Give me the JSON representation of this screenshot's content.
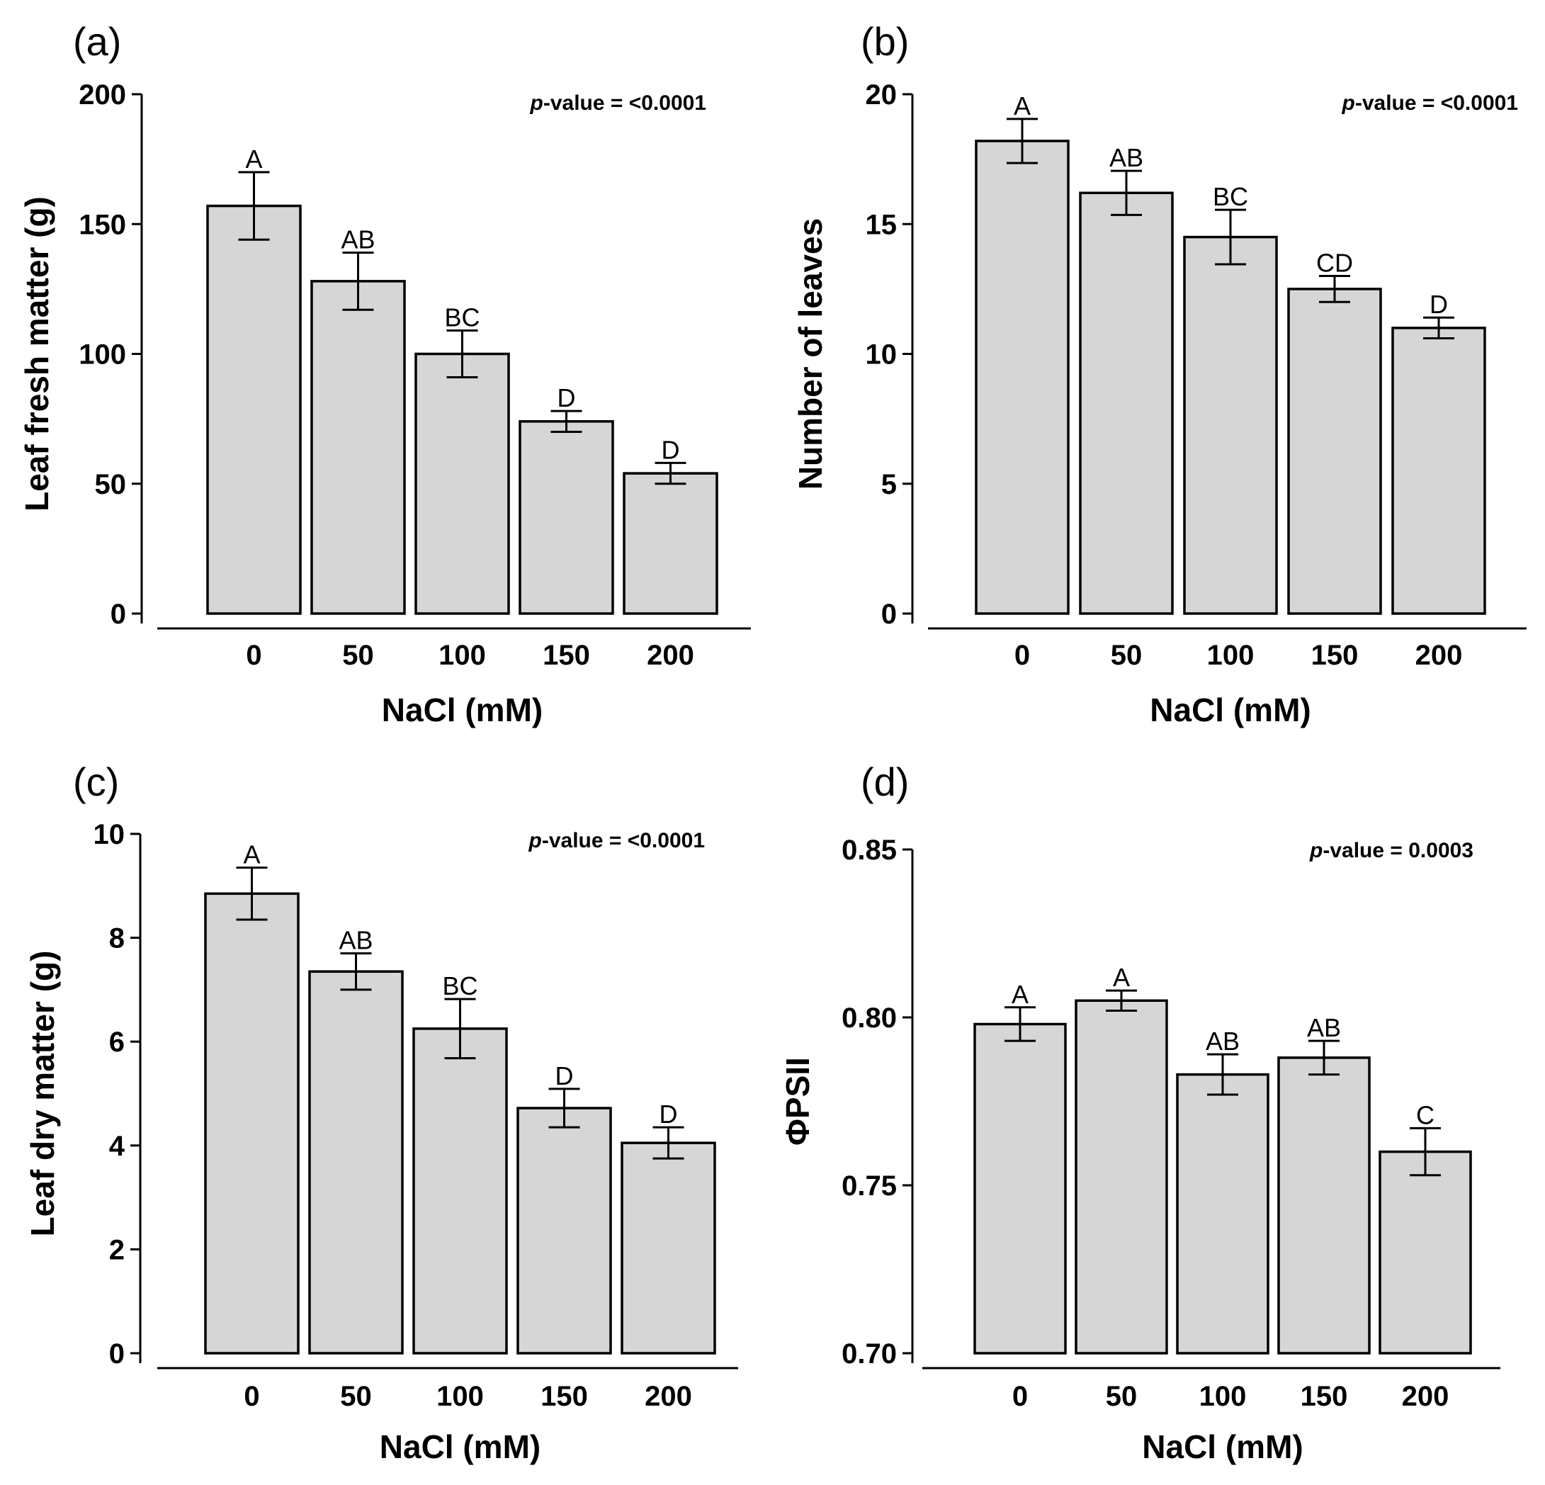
{
  "colors": {
    "bar_fill": "#d6d6d6",
    "bar_stroke": "#000000",
    "axis": "#000000",
    "background": "#ffffff"
  },
  "chart_data": [
    {
      "panel": "(a)",
      "type": "bar",
      "categories": [
        "0",
        "50",
        "100",
        "150",
        "200"
      ],
      "values": [
        157,
        128,
        100,
        74,
        54
      ],
      "error": [
        13,
        11,
        9,
        4,
        4
      ],
      "significance": [
        "A",
        "AB",
        "BC",
        "D",
        "D"
      ],
      "xlabel": "NaCl (mM)",
      "ylabel": "Leaf fresh matter (g)",
      "ylim": [
        0,
        200
      ],
      "yticks": [
        0,
        50,
        100,
        150,
        200
      ],
      "ytick_labels": [
        "0",
        "50",
        "100",
        "150",
        "200"
      ],
      "pvalue_prefix": "p",
      "pvalue_suffix": "-value = <0.0001"
    },
    {
      "panel": "(b)",
      "type": "bar",
      "categories": [
        "0",
        "50",
        "100",
        "150",
        "200"
      ],
      "values": [
        18.2,
        16.2,
        14.5,
        12.5,
        11.0
      ],
      "error": [
        0.85,
        0.85,
        1.05,
        0.5,
        0.4
      ],
      "significance": [
        "A",
        "AB",
        "BC",
        "CD",
        "D"
      ],
      "xlabel": "NaCl (mM)",
      "ylabel": "Number of leaves",
      "ylim": [
        0,
        20
      ],
      "yticks": [
        0,
        5,
        10,
        15,
        20
      ],
      "ytick_labels": [
        "0",
        "5",
        "10",
        "15",
        "20"
      ],
      "pvalue_prefix": "p",
      "pvalue_suffix": "-value = <0.0001"
    },
    {
      "panel": "(c)",
      "type": "bar",
      "categories": [
        "0",
        "50",
        "100",
        "150",
        "200"
      ],
      "values": [
        8.85,
        7.35,
        6.25,
        4.72,
        4.05
      ],
      "error": [
        0.5,
        0.35,
        0.57,
        0.37,
        0.3
      ],
      "significance": [
        "A",
        "AB",
        "BC",
        "D",
        "D"
      ],
      "xlabel": "NaCl (mM)",
      "ylabel": "Leaf dry matter (g)",
      "ylim": [
        0,
        10
      ],
      "yticks": [
        0,
        2,
        4,
        6,
        8,
        10
      ],
      "ytick_labels": [
        "0",
        "2",
        "4",
        "6",
        "8",
        "10"
      ],
      "pvalue_prefix": "p",
      "pvalue_suffix": "-value = <0.0001"
    },
    {
      "panel": "(d)",
      "type": "bar",
      "categories": [
        "0",
        "50",
        "100",
        "150",
        "200"
      ],
      "values": [
        0.798,
        0.805,
        0.783,
        0.788,
        0.76
      ],
      "error": [
        0.005,
        0.003,
        0.006,
        0.005,
        0.007
      ],
      "significance": [
        "A",
        "A",
        "AB",
        "AB",
        "C"
      ],
      "xlabel": "NaCl (mM)",
      "ylabel": "ΦPSII",
      "ylim": [
        0.7,
        0.85
      ],
      "yticks": [
        0.7,
        0.75,
        0.8,
        0.85
      ],
      "ytick_labels": [
        "0.70",
        "0.75",
        "0.80",
        "0.85"
      ],
      "pvalue_prefix": "p",
      "pvalue_suffix": "-value = 0.0003"
    }
  ]
}
